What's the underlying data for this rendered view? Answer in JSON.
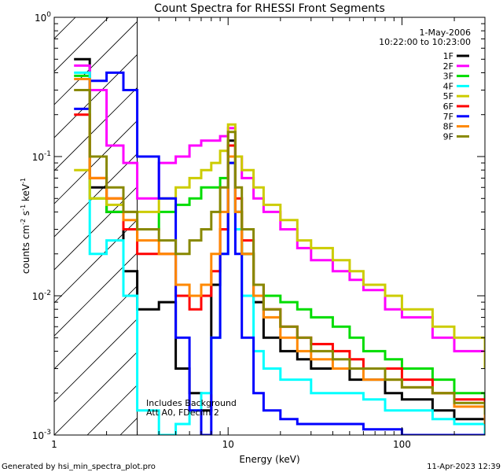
{
  "chart_data": {
    "type": "line",
    "title": "Count Spectra for RHESSI Front Segments",
    "xlabel": "Energy (keV)",
    "ylabel_base": "counts cm",
    "ylabel_exp1": "-2",
    "ylabel_mid": " s",
    "ylabel_exp2": "-1",
    "ylabel_end": " keV",
    "ylabel_exp3": "-1",
    "x_scale": "log",
    "y_scale": "log",
    "xlim": [
      1,
      300
    ],
    "ylim": [
      0.001,
      1
    ],
    "x_ticks": [
      {
        "value": 1,
        "label": "1"
      },
      {
        "value": 10,
        "label": "10"
      },
      {
        "value": 100,
        "label": "100"
      }
    ],
    "y_ticks": [
      {
        "value": 0.001,
        "base": "10",
        "exp": "-3"
      },
      {
        "value": 0.01,
        "base": "10",
        "exp": "-2"
      },
      {
        "value": 0.1,
        "base": "10",
        "exp": "-1"
      },
      {
        "value": 1,
        "base": "10",
        "exp": "0"
      }
    ],
    "hatched_region_x": [
      1,
      3
    ],
    "date": "1-May-2006",
    "time_range": "10:22:00 to 10:23:00",
    "annotation_line1": "Includes Background",
    "annotation_line2": "Att A0, FDecim 2",
    "legend_position": "top-right",
    "series": [
      {
        "name": "1F",
        "color": "#000000",
        "points": [
          [
            1.3,
            0.5
          ],
          [
            1.6,
            0.06
          ],
          [
            2,
            0.04
          ],
          [
            2.5,
            0.015
          ],
          [
            3,
            0.008
          ],
          [
            4,
            0.009
          ],
          [
            5,
            0.003
          ],
          [
            6,
            0.002
          ],
          [
            7,
            0.0015
          ],
          [
            8,
            0.012
          ],
          [
            9,
            0.03
          ],
          [
            10,
            0.13
          ],
          [
            11,
            0.04
          ],
          [
            12,
            0.02
          ],
          [
            14,
            0.009
          ],
          [
            16,
            0.005
          ],
          [
            20,
            0.004
          ],
          [
            25,
            0.0035
          ],
          [
            30,
            0.003
          ],
          [
            40,
            0.003
          ],
          [
            50,
            0.0025
          ],
          [
            60,
            0.0025
          ],
          [
            80,
            0.002
          ],
          [
            100,
            0.0018
          ],
          [
            150,
            0.0015
          ],
          [
            200,
            0.0013
          ],
          [
            300,
            0.0012
          ]
        ]
      },
      {
        "name": "2F",
        "color": "#ff00ff",
        "points": [
          [
            1.3,
            0.45
          ],
          [
            1.6,
            0.3
          ],
          [
            2,
            0.12
          ],
          [
            2.5,
            0.09
          ],
          [
            3,
            0.05
          ],
          [
            4,
            0.09
          ],
          [
            5,
            0.1
          ],
          [
            6,
            0.12
          ],
          [
            7,
            0.13
          ],
          [
            8,
            0.13
          ],
          [
            9,
            0.14
          ],
          [
            10,
            0.16
          ],
          [
            11,
            0.1
          ],
          [
            12,
            0.07
          ],
          [
            14,
            0.05
          ],
          [
            16,
            0.04
          ],
          [
            20,
            0.03
          ],
          [
            25,
            0.022
          ],
          [
            30,
            0.018
          ],
          [
            40,
            0.015
          ],
          [
            50,
            0.013
          ],
          [
            60,
            0.011
          ],
          [
            80,
            0.008
          ],
          [
            100,
            0.007
          ],
          [
            150,
            0.005
          ],
          [
            200,
            0.004
          ],
          [
            300,
            0.003
          ]
        ]
      },
      {
        "name": "3F",
        "color": "#00dd00",
        "points": [
          [
            1.3,
            0.38
          ],
          [
            1.6,
            0.05
          ],
          [
            2,
            0.04
          ],
          [
            2.5,
            0.03
          ],
          [
            3,
            0.03
          ],
          [
            4,
            0.04
          ],
          [
            5,
            0.045
          ],
          [
            6,
            0.05
          ],
          [
            7,
            0.06
          ],
          [
            8,
            0.06
          ],
          [
            9,
            0.07
          ],
          [
            10,
            0.09
          ],
          [
            11,
            0.04
          ],
          [
            12,
            0.02
          ],
          [
            14,
            0.012
          ],
          [
            16,
            0.01
          ],
          [
            20,
            0.009
          ],
          [
            25,
            0.008
          ],
          [
            30,
            0.007
          ],
          [
            40,
            0.006
          ],
          [
            50,
            0.005
          ],
          [
            60,
            0.004
          ],
          [
            80,
            0.0035
          ],
          [
            100,
            0.003
          ],
          [
            150,
            0.0025
          ],
          [
            200,
            0.002
          ],
          [
            300,
            0.0015
          ]
        ]
      },
      {
        "name": "4F",
        "color": "#00ffff",
        "points": [
          [
            1.3,
            0.4
          ],
          [
            1.6,
            0.02
          ],
          [
            2,
            0.025
          ],
          [
            2.5,
            0.01
          ],
          [
            3,
            0.0015
          ],
          [
            4,
            0.001
          ],
          [
            5,
            0.0012
          ],
          [
            6,
            0.0015
          ],
          [
            7,
            0.002
          ],
          [
            8,
            0.005
          ],
          [
            9,
            0.02
          ],
          [
            10,
            0.1
          ],
          [
            11,
            0.03
          ],
          [
            12,
            0.01
          ],
          [
            14,
            0.004
          ],
          [
            16,
            0.003
          ],
          [
            20,
            0.0025
          ],
          [
            25,
            0.0025
          ],
          [
            30,
            0.002
          ],
          [
            40,
            0.002
          ],
          [
            50,
            0.002
          ],
          [
            60,
            0.0018
          ],
          [
            80,
            0.0015
          ],
          [
            100,
            0.0015
          ],
          [
            150,
            0.0013
          ],
          [
            200,
            0.0012
          ],
          [
            300,
            0.001
          ]
        ]
      },
      {
        "name": "5F",
        "color": "#cccc00",
        "points": [
          [
            1.3,
            0.08
          ],
          [
            1.6,
            0.05
          ],
          [
            2,
            0.045
          ],
          [
            2.5,
            0.04
          ],
          [
            3,
            0.04
          ],
          [
            4,
            0.05
          ],
          [
            5,
            0.06
          ],
          [
            6,
            0.07
          ],
          [
            7,
            0.08
          ],
          [
            8,
            0.09
          ],
          [
            9,
            0.11
          ],
          [
            10,
            0.17
          ],
          [
            11,
            0.1
          ],
          [
            12,
            0.08
          ],
          [
            14,
            0.06
          ],
          [
            16,
            0.045
          ],
          [
            20,
            0.035
          ],
          [
            25,
            0.025
          ],
          [
            30,
            0.022
          ],
          [
            40,
            0.018
          ],
          [
            50,
            0.015
          ],
          [
            60,
            0.012
          ],
          [
            80,
            0.01
          ],
          [
            100,
            0.008
          ],
          [
            150,
            0.006
          ],
          [
            200,
            0.005
          ],
          [
            300,
            0.003
          ]
        ]
      },
      {
        "name": "6F",
        "color": "#ff0000",
        "points": [
          [
            1.3,
            0.2
          ],
          [
            1.6,
            0.07
          ],
          [
            2,
            0.05
          ],
          [
            2.5,
            0.03
          ],
          [
            3,
            0.02
          ],
          [
            4,
            0.02
          ],
          [
            5,
            0.01
          ],
          [
            6,
            0.008
          ],
          [
            7,
            0.01
          ],
          [
            8,
            0.015
          ],
          [
            9,
            0.03
          ],
          [
            10,
            0.12
          ],
          [
            11,
            0.05
          ],
          [
            12,
            0.025
          ],
          [
            14,
            0.012
          ],
          [
            16,
            0.008
          ],
          [
            20,
            0.006
          ],
          [
            25,
            0.005
          ],
          [
            30,
            0.0045
          ],
          [
            40,
            0.004
          ],
          [
            50,
            0.0035
          ],
          [
            60,
            0.003
          ],
          [
            80,
            0.003
          ],
          [
            100,
            0.0025
          ],
          [
            150,
            0.002
          ],
          [
            200,
            0.0018
          ],
          [
            300,
            0.0015
          ]
        ]
      },
      {
        "name": "7F",
        "color": "#0000ff",
        "points": [
          [
            1.3,
            0.22
          ],
          [
            1.6,
            0.35
          ],
          [
            2,
            0.4
          ],
          [
            2.5,
            0.3
          ],
          [
            3,
            0.1
          ],
          [
            4,
            0.05
          ],
          [
            5,
            0.005
          ],
          [
            6,
            0.0015
          ],
          [
            7,
            0.001
          ],
          [
            8,
            0.005
          ],
          [
            9,
            0.02
          ],
          [
            10,
            0.09
          ],
          [
            11,
            0.02
          ],
          [
            12,
            0.005
          ],
          [
            14,
            0.002
          ],
          [
            16,
            0.0015
          ],
          [
            20,
            0.0013
          ],
          [
            25,
            0.0012
          ],
          [
            30,
            0.0012
          ],
          [
            40,
            0.0012
          ],
          [
            50,
            0.0012
          ],
          [
            60,
            0.0011
          ],
          [
            80,
            0.0011
          ],
          [
            100,
            0.001
          ],
          [
            150,
            0.001
          ],
          [
            200,
            0.001
          ],
          [
            300,
            0.001
          ]
        ]
      },
      {
        "name": "8F",
        "color": "#ff8800",
        "points": [
          [
            1.3,
            0.36
          ],
          [
            1.6,
            0.07
          ],
          [
            2,
            0.05
          ],
          [
            2.5,
            0.035
          ],
          [
            3,
            0.025
          ],
          [
            4,
            0.02
          ],
          [
            5,
            0.012
          ],
          [
            6,
            0.01
          ],
          [
            7,
            0.012
          ],
          [
            8,
            0.02
          ],
          [
            9,
            0.04
          ],
          [
            10,
            0.1
          ],
          [
            11,
            0.04
          ],
          [
            12,
            0.02
          ],
          [
            14,
            0.01
          ],
          [
            16,
            0.007
          ],
          [
            20,
            0.005
          ],
          [
            25,
            0.004
          ],
          [
            30,
            0.0035
          ],
          [
            40,
            0.003
          ],
          [
            50,
            0.003
          ],
          [
            60,
            0.0025
          ],
          [
            80,
            0.0025
          ],
          [
            100,
            0.0022
          ],
          [
            150,
            0.002
          ],
          [
            200,
            0.0016
          ],
          [
            300,
            0.0012
          ]
        ]
      },
      {
        "name": "9F",
        "color": "#888800",
        "points": [
          [
            1.3,
            0.3
          ],
          [
            1.6,
            0.1
          ],
          [
            2,
            0.06
          ],
          [
            2.5,
            0.04
          ],
          [
            3,
            0.03
          ],
          [
            4,
            0.025
          ],
          [
            5,
            0.02
          ],
          [
            6,
            0.025
          ],
          [
            7,
            0.03
          ],
          [
            8,
            0.04
          ],
          [
            9,
            0.06
          ],
          [
            10,
            0.15
          ],
          [
            11,
            0.06
          ],
          [
            12,
            0.03
          ],
          [
            14,
            0.012
          ],
          [
            16,
            0.008
          ],
          [
            20,
            0.006
          ],
          [
            25,
            0.005
          ],
          [
            30,
            0.004
          ],
          [
            40,
            0.0035
          ],
          [
            50,
            0.003
          ],
          [
            60,
            0.003
          ],
          [
            80,
            0.0025
          ],
          [
            100,
            0.0022
          ],
          [
            150,
            0.002
          ],
          [
            200,
            0.0017
          ],
          [
            300,
            0.0014
          ]
        ]
      }
    ]
  },
  "footer": {
    "left": "Generated by hsi_min_spectra_plot.pro",
    "right": "11-Apr-2023 12:39"
  }
}
